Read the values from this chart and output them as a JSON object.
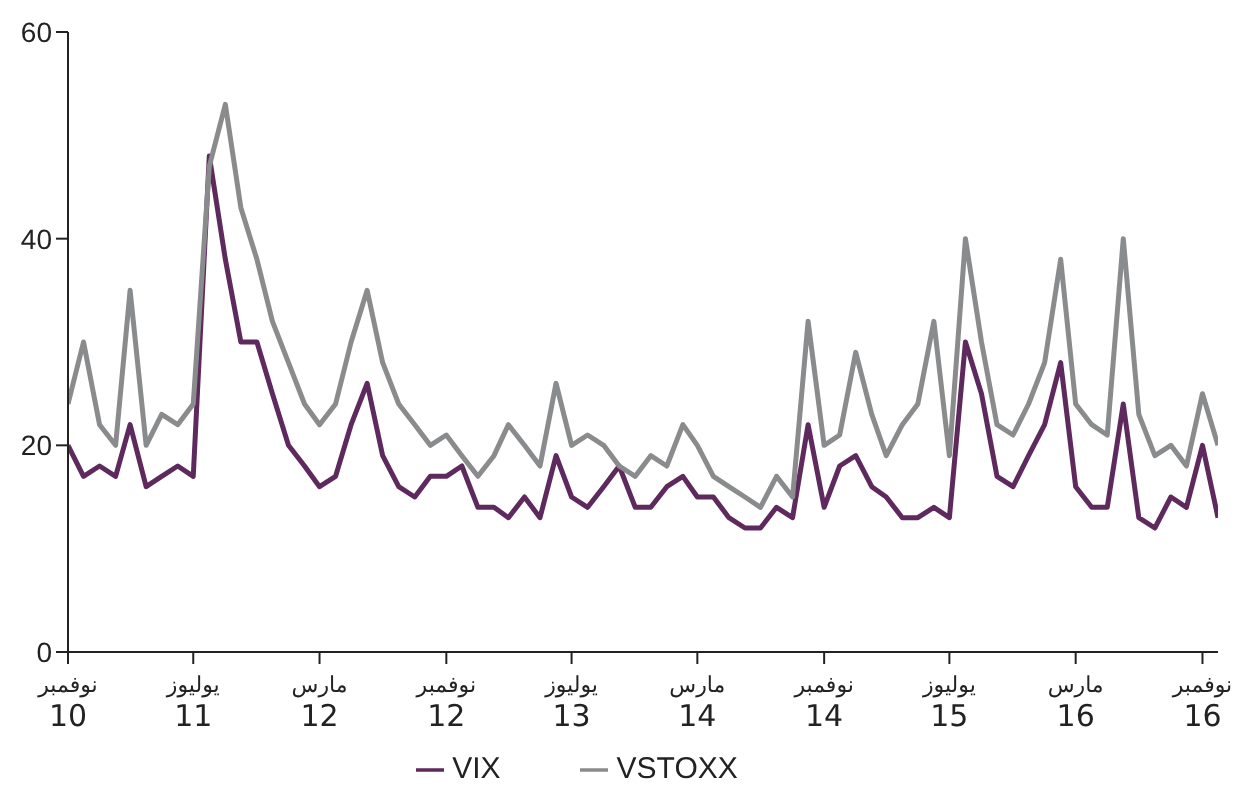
{
  "chart_data": {
    "type": "line",
    "x": [
      "2010-11",
      "2010-12",
      "2011-01",
      "2011-02",
      "2011-03",
      "2011-04",
      "2011-05",
      "2011-06",
      "2011-07",
      "2011-08",
      "2011-09",
      "2011-10",
      "2011-11",
      "2011-12",
      "2012-01",
      "2012-02",
      "2012-03",
      "2012-04",
      "2012-05",
      "2012-06",
      "2012-07",
      "2012-08",
      "2012-09",
      "2012-10",
      "2012-11",
      "2012-12",
      "2013-01",
      "2013-02",
      "2013-03",
      "2013-04",
      "2013-05",
      "2013-06",
      "2013-07",
      "2013-08",
      "2013-09",
      "2013-10",
      "2013-11",
      "2013-12",
      "2014-01",
      "2014-02",
      "2014-03",
      "2014-04",
      "2014-05",
      "2014-06",
      "2014-07",
      "2014-08",
      "2014-09",
      "2014-10",
      "2014-11",
      "2014-12",
      "2015-01",
      "2015-02",
      "2015-03",
      "2015-04",
      "2015-05",
      "2015-06",
      "2015-07",
      "2015-08",
      "2015-09",
      "2015-10",
      "2015-11",
      "2015-12",
      "2016-01",
      "2016-02",
      "2016-03",
      "2016-04",
      "2016-05",
      "2016-06",
      "2016-07",
      "2016-08",
      "2016-09",
      "2016-10",
      "2016-11",
      "2016-12"
    ],
    "series": [
      {
        "name": "VIX",
        "color": "#5e2a5e",
        "values": [
          20,
          17,
          18,
          17,
          22,
          16,
          17,
          18,
          17,
          48,
          38,
          30,
          30,
          25,
          20,
          18,
          16,
          17,
          22,
          26,
          19,
          16,
          15,
          17,
          17,
          18,
          14,
          14,
          13,
          15,
          13,
          19,
          15,
          14,
          16,
          18,
          14,
          14,
          16,
          17,
          15,
          15,
          13,
          12,
          12,
          14,
          13,
          22,
          14,
          18,
          19,
          16,
          15,
          13,
          13,
          14,
          13,
          30,
          25,
          17,
          16,
          19,
          22,
          28,
          16,
          14,
          14,
          24,
          13,
          12,
          15,
          14,
          20,
          13
        ]
      },
      {
        "name": "VSTOXX",
        "color": "#8a8b8d",
        "values": [
          24,
          30,
          22,
          20,
          35,
          20,
          23,
          22,
          24,
          47,
          53,
          43,
          38,
          32,
          28,
          24,
          22,
          24,
          30,
          35,
          28,
          24,
          22,
          20,
          21,
          19,
          17,
          19,
          22,
          20,
          18,
          26,
          20,
          21,
          20,
          18,
          17,
          19,
          18,
          22,
          20,
          17,
          16,
          15,
          14,
          17,
          15,
          32,
          20,
          21,
          29,
          23,
          19,
          22,
          24,
          32,
          19,
          40,
          30,
          22,
          21,
          24,
          28,
          38,
          24,
          22,
          21,
          40,
          23,
          19,
          20,
          18,
          25,
          20
        ]
      }
    ],
    "xlim": [
      "2010-11",
      "2016-12"
    ],
    "xticks": [
      {
        "value": "2010-11",
        "label": "نوفمبر 10"
      },
      {
        "value": "2011-07",
        "label": "يوليوز 11"
      },
      {
        "value": "2012-03",
        "label": "مارس 12"
      },
      {
        "value": "2012-11",
        "label": "نوفمبر 12"
      },
      {
        "value": "2013-07",
        "label": "يوليوز 13"
      },
      {
        "value": "2014-03",
        "label": "مارس 14"
      },
      {
        "value": "2014-11",
        "label": "نوفمبر 14"
      },
      {
        "value": "2015-07",
        "label": "يوليوز 15"
      },
      {
        "value": "2016-03",
        "label": "مارس 16"
      },
      {
        "value": "2016-11",
        "label": "نوفمبر 16"
      }
    ],
    "ylim": [
      0,
      60
    ],
    "yticks": [
      0,
      20,
      40,
      60
    ],
    "grid": false,
    "legend": "bottom",
    "marker": "none",
    "line_style": "solid"
  }
}
